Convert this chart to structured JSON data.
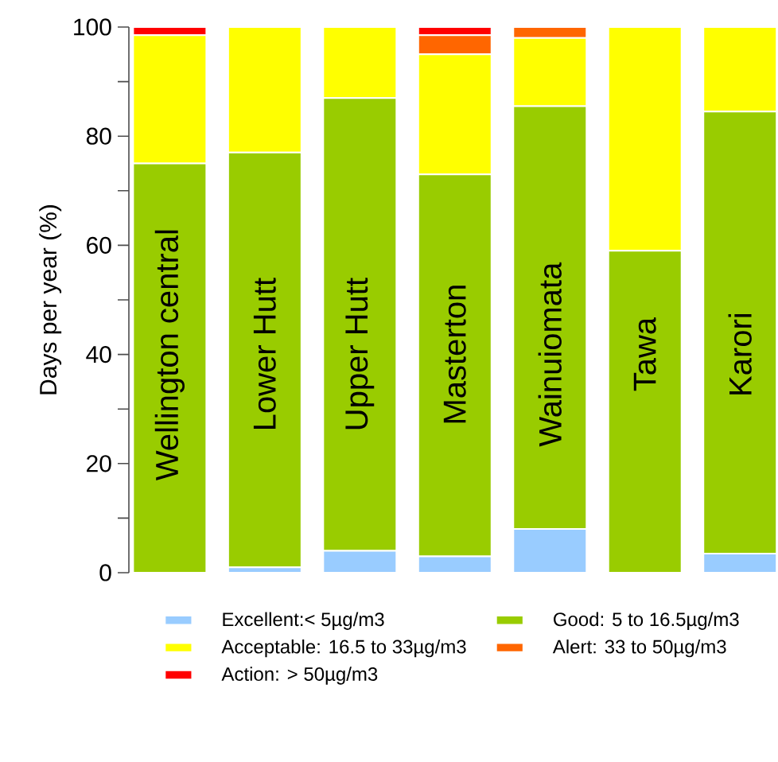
{
  "chart_data": {
    "type": "bar",
    "stacked": true,
    "ylabel": "Days per year (%)",
    "categories": [
      "Wellington central",
      "Lower Hutt",
      "Upper Hutt",
      "Masterton",
      "Wainuiomata",
      "Tawa",
      "Karori"
    ],
    "series": [
      {
        "name": "Excellent:< 5µg/m3",
        "color": "#99ccff",
        "values": [
          0,
          1,
          4,
          3,
          8,
          0,
          3.5
        ]
      },
      {
        "name": "Good: 5 to 16.5µg/m3",
        "color": "#99cc00",
        "values": [
          75,
          76,
          83,
          70,
          77.5,
          59,
          81
        ]
      },
      {
        "name": "Acceptable: 16.5 to 33µg/m3",
        "color": "#ffff00",
        "values": [
          23.5,
          23,
          13,
          22,
          12.5,
          41,
          15.5
        ]
      },
      {
        "name": "Alert: 33 to 50µg/m3",
        "color": "#ff6600",
        "values": [
          0,
          0,
          0,
          3.5,
          2,
          0,
          0
        ]
      },
      {
        "name": "Action: > 50µg/m3",
        "color": "#ff0000",
        "values": [
          1.5,
          0,
          0,
          1.5,
          0,
          0,
          0
        ]
      }
    ],
    "ylim": [
      0,
      100
    ],
    "yticks": [
      0,
      {
        "value": 10,
        "label": null
      },
      20,
      {
        "value": 30,
        "label": null
      },
      40,
      {
        "value": 50,
        "label": null
      },
      60,
      {
        "value": 70,
        "label": null
      },
      80,
      {
        "value": 90,
        "label": null
      },
      100
    ],
    "grid": false,
    "legend": "bottom",
    "tick_labels": "y"
  }
}
